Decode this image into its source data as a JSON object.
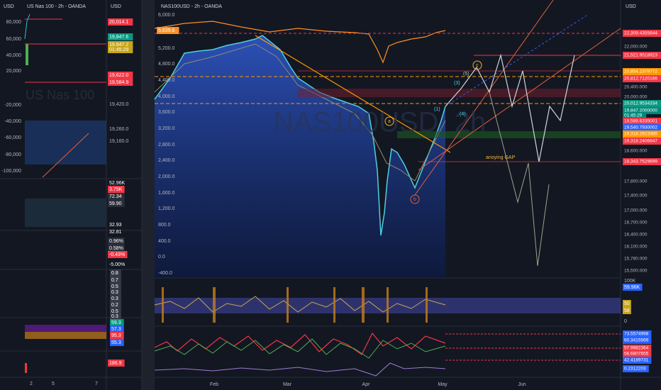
{
  "left_panel": {
    "currency": "USD",
    "title": "US Nas 100 - 2h - OANDA",
    "watermark": "US Nas 100",
    "axis": [
      "80,000",
      "60,000",
      "40,000",
      "20,000",
      "-20,000",
      "-40,000",
      "-60,000",
      "-80,000",
      "-100,000"
    ],
    "price_axis": {
      "currency": "USD",
      "labels": [
        "20,014.1",
        "19,847.6",
        "19,847.2",
        "01:45:29",
        "19,622.0",
        "19,584.9",
        "19,420.0",
        "19,260.0",
        "19,160.0"
      ]
    },
    "pane_labels": [
      "52.96K",
      "3.75K",
      "72.34",
      "59.90",
      "32.93",
      "32.81",
      "0.96%",
      "0.58%",
      "-0.43%",
      "-5.00%"
    ],
    "osc_labels": [
      "0.8",
      "0.7",
      "0.5",
      "0.3",
      "0.3",
      "0.2",
      "0.5",
      "0.3"
    ],
    "band_labels": [
      "59.3",
      "57.3",
      "95.3",
      "55.3"
    ],
    "bottom_label": "186.9",
    "x_axis": [
      "2",
      "5",
      "7"
    ]
  },
  "main": {
    "title": "NAS100USD - 2h - OANDA",
    "watermark": "NAS100USD, 2h",
    "left_axis": [
      "6,000.0",
      "5,639.6",
      "5,200.0",
      "4,800.0",
      "4,400.0",
      "4,000.0",
      "3,600.0",
      "3,200.0",
      "2,800.0",
      "2,400.0",
      "2,000.0",
      "1,600.0",
      "1,200.0",
      "800.0",
      "400.0",
      "0.0",
      "-400.0"
    ],
    "right_axis": {
      "currency": "USD",
      "labels": [
        "22,309.4355644",
        "22,000.000",
        "21,521.9518923",
        "20,854.2379772",
        "20,812.7120166",
        "20,400.000",
        "20,000.000",
        "20,012.9534334",
        "19,847.2000000",
        "01:45:29",
        "19,588.6335001",
        "19,540.7930002",
        "19,318.2623385",
        "19,318.2406647",
        "18,600.000",
        "18,343.7529699",
        "17,800.000",
        "17,400.000",
        "17,000.000",
        "16,700.000",
        "16,400.000",
        "16,100.000",
        "15,780.000",
        "15,500.000"
      ]
    },
    "annotations": [
      "a",
      "b",
      "c",
      "(1)",
      "(3)",
      "(5)",
      "(4)",
      "anoying GAP"
    ],
    "pane1_labels": [
      "100K",
      "59.96K",
      "50",
      "58",
      "0"
    ],
    "pane2_labels": [
      "73.5574998",
      "60.3415569",
      "57.9982364",
      "56.6807655",
      "42.4189731",
      "0.2312203"
    ],
    "x_axis": [
      "Feb",
      "Mar",
      "Apr",
      "May",
      "Jun"
    ]
  }
}
